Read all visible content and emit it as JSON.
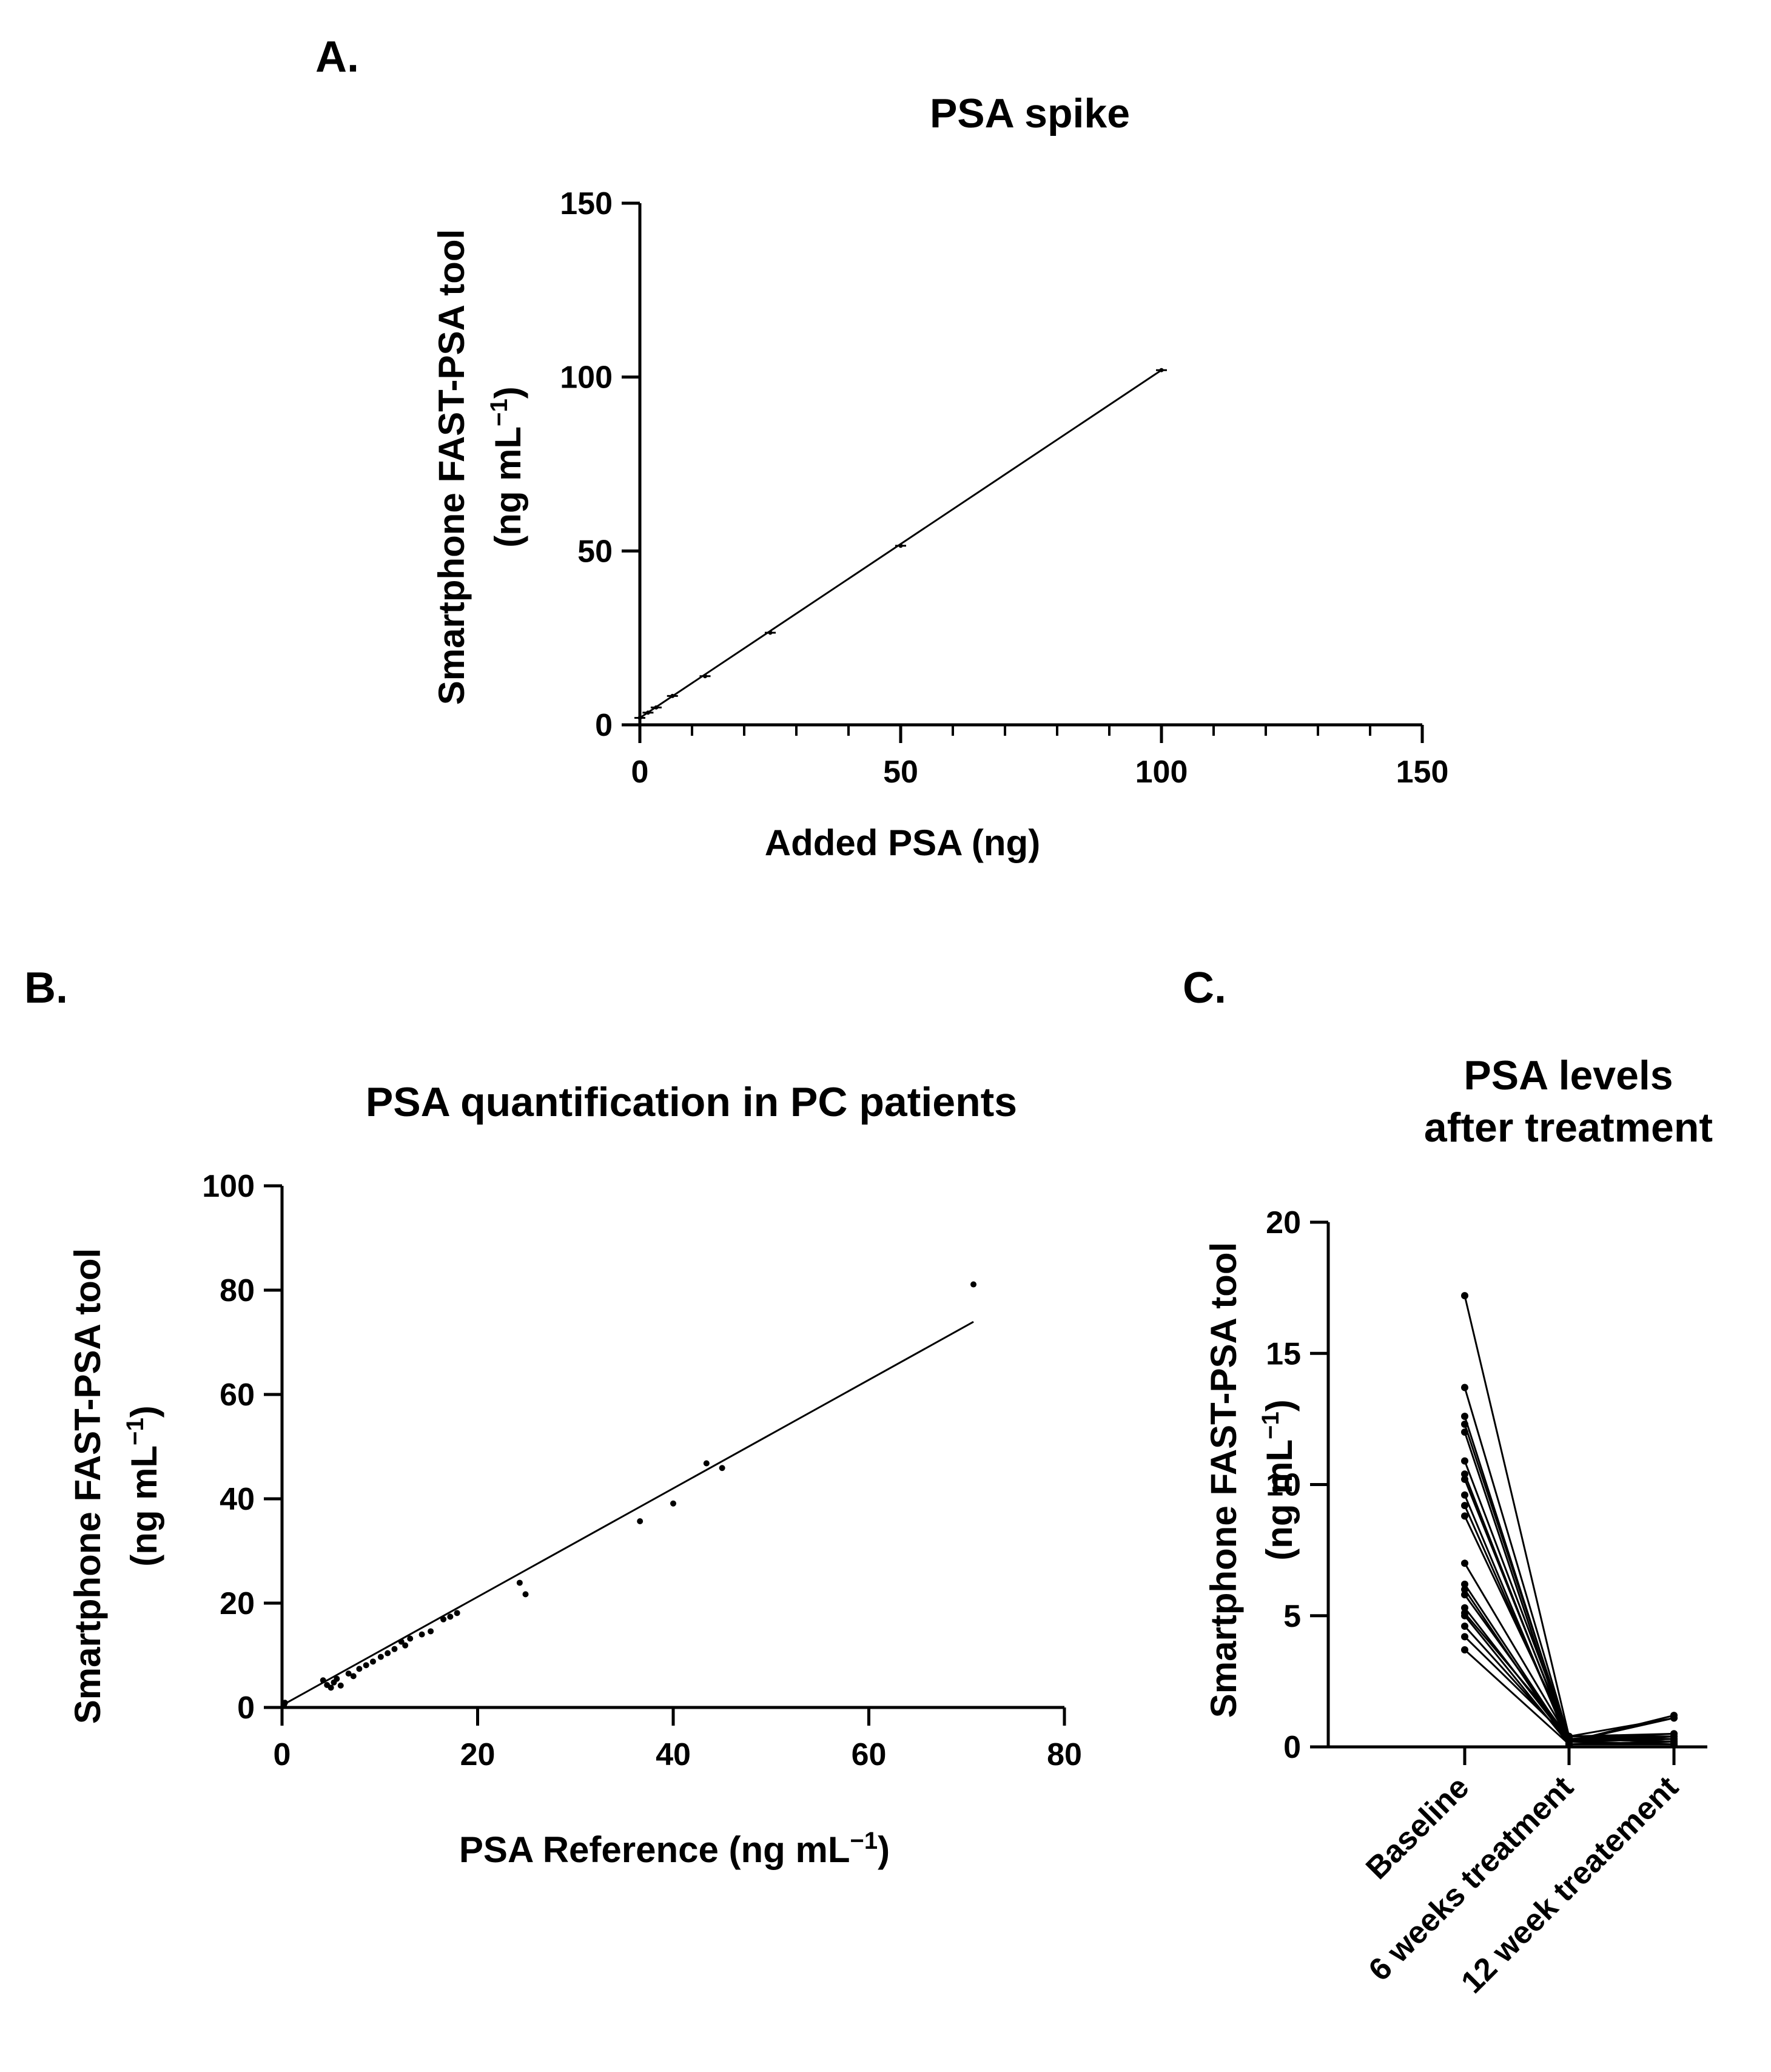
{
  "panels": {
    "a": {
      "letter": "A."
    },
    "b": {
      "letter": "B."
    },
    "c": {
      "letter": "C."
    }
  },
  "chart_data": [
    {
      "id": "A",
      "type": "line",
      "title": "PSA spike",
      "xlabel": "Added PSA (ng)",
      "ylabel_line1": "Smartphone FAST-PSA tool",
      "ylabel_line2": "(ng mL",
      "ylabel_sup": "−1",
      "ylabel_close": ")",
      "xlim": [
        0,
        150
      ],
      "ylim": [
        0,
        150
      ],
      "xticks": [
        "0",
        "50",
        "100",
        "150"
      ],
      "yticks": [
        "0",
        "50",
        "100",
        "150"
      ],
      "points": [
        {
          "x": 0,
          "y": 2
        },
        {
          "x": 1.56,
          "y": 3.5
        },
        {
          "x": 3.13,
          "y": 5
        },
        {
          "x": 6.25,
          "y": 8.3
        },
        {
          "x": 12.5,
          "y": 14
        },
        {
          "x": 25,
          "y": 26.5
        },
        {
          "x": 50,
          "y": 51.5
        },
        {
          "x": 100,
          "y": 102
        }
      ],
      "fit": {
        "slope": 1.0,
        "intercept": 2,
        "x_range": [
          0,
          100
        ]
      }
    },
    {
      "id": "B",
      "type": "scatter",
      "title": "PSA quantification in PC patients",
      "xlabel": "PSA Reference (ng mL",
      "xlabel_sup": "−1",
      "xlabel_close": ")",
      "ylabel_line1": "Smartphone FAST-PSA tool",
      "ylabel_line2": "(ng mL",
      "ylabel_sup": "−1",
      "ylabel_close": ")",
      "xlim": [
        0,
        80
      ],
      "ylim": [
        0,
        100
      ],
      "xticks": [
        "0",
        "20",
        "40",
        "60",
        "80"
      ],
      "yticks": [
        "0",
        "20",
        "40",
        "60",
        "80",
        "100"
      ],
      "points": [
        {
          "x": 0.2,
          "y": 0.5
        },
        {
          "x": 0.3,
          "y": 0.9
        },
        {
          "x": 4.2,
          "y": 5.2
        },
        {
          "x": 4.6,
          "y": 4.3
        },
        {
          "x": 5.0,
          "y": 3.8
        },
        {
          "x": 5.3,
          "y": 4.8
        },
        {
          "x": 5.6,
          "y": 5.5
        },
        {
          "x": 6.0,
          "y": 4.2
        },
        {
          "x": 6.8,
          "y": 6.5
        },
        {
          "x": 7.3,
          "y": 6.0
        },
        {
          "x": 7.9,
          "y": 7.4
        },
        {
          "x": 8.6,
          "y": 8.1
        },
        {
          "x": 9.3,
          "y": 8.8
        },
        {
          "x": 10.1,
          "y": 9.7
        },
        {
          "x": 10.8,
          "y": 10.4
        },
        {
          "x": 11.5,
          "y": 11.2
        },
        {
          "x": 12.2,
          "y": 12.6
        },
        {
          "x": 12.6,
          "y": 11.9
        },
        {
          "x": 13.1,
          "y": 13.2
        },
        {
          "x": 14.3,
          "y": 14.0
        },
        {
          "x": 15.2,
          "y": 14.6
        },
        {
          "x": 16.5,
          "y": 16.9
        },
        {
          "x": 17.2,
          "y": 17.4
        },
        {
          "x": 17.9,
          "y": 18.1
        },
        {
          "x": 24.3,
          "y": 23.9
        },
        {
          "x": 24.9,
          "y": 21.7
        },
        {
          "x": 36.6,
          "y": 35.7
        },
        {
          "x": 40.0,
          "y": 39.1
        },
        {
          "x": 43.4,
          "y": 46.8
        },
        {
          "x": 45.0,
          "y": 45.9
        },
        {
          "x": 70.7,
          "y": 81.1
        }
      ],
      "fit": {
        "slope": 1.04,
        "intercept": 0.4,
        "x_range": [
          0,
          70.7
        ]
      }
    },
    {
      "id": "C",
      "type": "line",
      "title_line1": "PSA levels",
      "title_line2": "after treatment",
      "ylabel_line1": "Smartphone FAST-PSA tool",
      "ylabel_line2": "(ng mL",
      "ylabel_sup": "−1",
      "ylabel_close": ")",
      "categories": [
        "Baseline",
        "6 weeks treatment",
        "12 week treatement"
      ],
      "ylim": [
        0,
        20
      ],
      "yticks": [
        "0",
        "5",
        "10",
        "15",
        "20"
      ],
      "series": [
        {
          "values": [
            17.2,
            0.4,
            1.1
          ]
        },
        {
          "values": [
            13.7,
            0.3,
            0.5
          ]
        },
        {
          "values": [
            12.6,
            0.2,
            1.2
          ]
        },
        {
          "values": [
            12.3,
            0.3,
            0.3
          ]
        },
        {
          "values": [
            12.0,
            0.1,
            0.2
          ]
        },
        {
          "values": [
            10.9,
            0.4,
            0.4
          ]
        },
        {
          "values": [
            10.4,
            0.2,
            1.1
          ]
        },
        {
          "values": [
            10.2,
            0.3,
            0.2
          ]
        },
        {
          "values": [
            9.6,
            0.1,
            0.1
          ]
        },
        {
          "values": [
            9.2,
            0.2,
            0.3
          ]
        },
        {
          "values": [
            8.8,
            0.4,
            0.5
          ]
        },
        {
          "values": [
            7.0,
            0.3,
            0.2
          ]
        },
        {
          "values": [
            6.2,
            0.2,
            0.4
          ]
        },
        {
          "values": [
            6.0,
            0.1,
            0.1
          ]
        },
        {
          "values": [
            5.8,
            0.3,
            0.2
          ]
        },
        {
          "values": [
            5.3,
            0.2,
            0.1
          ]
        },
        {
          "values": [
            5.1,
            0.4,
            0.3
          ]
        },
        {
          "values": [
            5.0,
            0.1,
            0.2
          ]
        },
        {
          "values": [
            4.6,
            0.2,
            0.1
          ]
        },
        {
          "values": [
            4.2,
            0.3,
            0.2
          ]
        },
        {
          "values": [
            3.7,
            0.1,
            0.1
          ]
        }
      ]
    }
  ]
}
